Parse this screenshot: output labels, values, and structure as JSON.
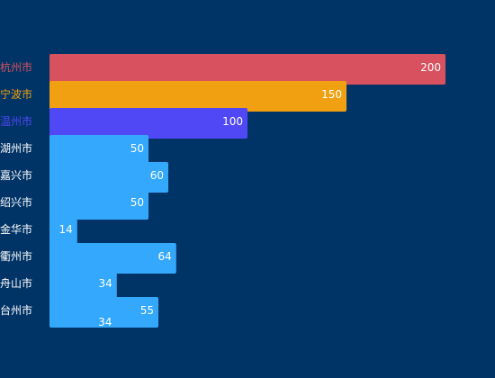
{
  "chart_data": {
    "type": "bar",
    "orientation": "horizontal",
    "categories": [
      "杭州市",
      "宁波市",
      "温州市",
      "湖州市",
      "嘉兴市",
      "绍兴市",
      "金华市",
      "衢州市",
      "舟山市",
      "台州市"
    ],
    "values": [
      200,
      150,
      100,
      50,
      60,
      50,
      14,
      64,
      34,
      55
    ],
    "extra_label": "34",
    "xlim": [
      0,
      250
    ],
    "grid": false,
    "legend": "none",
    "bar_colors": [
      "#d7525e",
      "#f0a011",
      "#5048f5",
      "#33a8fc",
      "#33a8fc",
      "#33a8fc",
      "#33a8fc",
      "#33a8fc",
      "#33a8fc",
      "#33a8fc"
    ],
    "label_colors": [
      "#d7525e",
      "#f0a011",
      "#5048f5",
      "#ffffff",
      "#ffffff",
      "#ffffff",
      "#ffffff",
      "#ffffff",
      "#ffffff",
      "#ffffff"
    ],
    "background": "#003366"
  }
}
